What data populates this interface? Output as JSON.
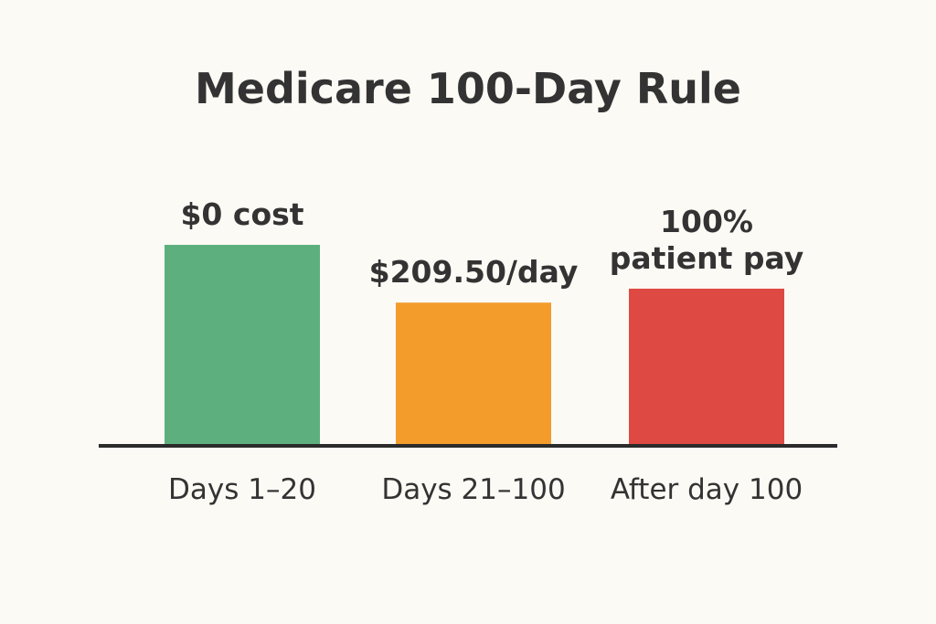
{
  "chart_data": {
    "type": "bar",
    "title": "Medicare 100-Day Rule",
    "categories": [
      "Days 1–20",
      "Days 21–100",
      "After day 100"
    ],
    "values": [
      100,
      71,
      78
    ],
    "data_labels": [
      [
        "$0 cost"
      ],
      [
        "$209.50/day"
      ],
      [
        "100%",
        "patient pay"
      ]
    ],
    "colors": [
      "#5db07d",
      "#f39c2c",
      "#de4a43"
    ],
    "axis_color": "#2b2b2b",
    "grid": false,
    "legend": "none",
    "xlabel": "",
    "ylabel": "",
    "ylim": [
      0,
      100
    ]
  }
}
